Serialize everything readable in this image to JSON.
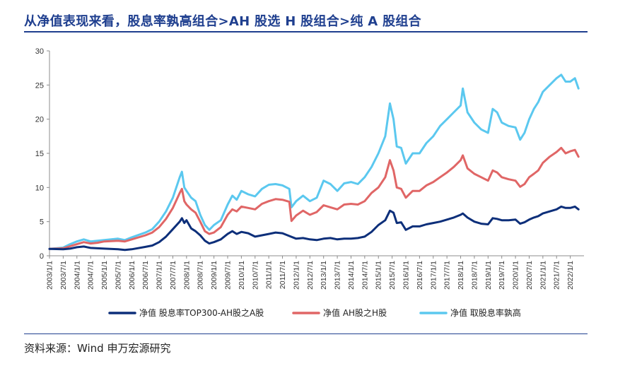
{
  "header": {
    "title": "从净值表现来看，股息率孰高组合>AH 股选 H 股组合>纯 A 股组合"
  },
  "footer": {
    "source": "资料来源：Wind  申万宏源研究"
  },
  "colors": {
    "title": "#1f3f8f",
    "series_1": "#0d2f7a",
    "series_2": "#e06666",
    "series_3": "#5bc8ef"
  },
  "chart_data": {
    "type": "line",
    "title": "",
    "xlabel": "",
    "ylabel": "",
    "ylim": [
      0,
      30
    ],
    "yticks": [
      0,
      5,
      10,
      15,
      20,
      25,
      30
    ],
    "grid": false,
    "legend_position": "bottom",
    "x_range": [
      2003.0,
      2022.5
    ],
    "xtick_labels": [
      "2003/1/1",
      "2003/7/1",
      "2004/1/1",
      "2004/7/1",
      "2005/1/1",
      "2005/7/1",
      "2006/1/1",
      "2006/7/1",
      "2007/1/1",
      "2007/7/1",
      "2008/1/1",
      "2008/7/1",
      "2009/1/1",
      "2009/7/1",
      "2010/1/1",
      "2010/7/1",
      "2011/1/1",
      "2011/7/1",
      "2012/1/1",
      "2012/7/1",
      "2013/1/1",
      "2013/7/1",
      "2014/1/1",
      "2014/7/1",
      "2015/1/1",
      "2015/7/1",
      "2016/1/1",
      "2016/7/1",
      "2017/1/1",
      "2017/7/1",
      "2018/1/1",
      "2018/7/1",
      "2019/1/1",
      "2019/7/1",
      "2020/1/1",
      "2020/7/1",
      "2021/1/1",
      "2021/7/1",
      "2022/1/1"
    ],
    "series": [
      {
        "name": "净值 股息率TOP300-AH股之A股",
        "color": "#0d2f7a",
        "points": [
          [
            2003.0,
            1.0
          ],
          [
            2003.5,
            0.95
          ],
          [
            2003.75,
            1.05
          ],
          [
            2004.0,
            1.25
          ],
          [
            2004.25,
            1.35
          ],
          [
            2004.5,
            1.15
          ],
          [
            2004.75,
            1.1
          ],
          [
            2005.0,
            1.05
          ],
          [
            2005.5,
            0.95
          ],
          [
            2005.75,
            0.85
          ],
          [
            2006.0,
            0.95
          ],
          [
            2006.5,
            1.3
          ],
          [
            2006.75,
            1.5
          ],
          [
            2007.0,
            2.0
          ],
          [
            2007.25,
            2.8
          ],
          [
            2007.5,
            3.9
          ],
          [
            2007.75,
            5.0
          ],
          [
            2007.83,
            5.5
          ],
          [
            2007.92,
            4.8
          ],
          [
            2008.0,
            5.2
          ],
          [
            2008.17,
            4.0
          ],
          [
            2008.33,
            3.6
          ],
          [
            2008.5,
            3.0
          ],
          [
            2008.67,
            2.2
          ],
          [
            2008.83,
            1.8
          ],
          [
            2009.0,
            2.0
          ],
          [
            2009.25,
            2.4
          ],
          [
            2009.5,
            3.2
          ],
          [
            2009.67,
            3.6
          ],
          [
            2009.83,
            3.2
          ],
          [
            2010.0,
            3.5
          ],
          [
            2010.25,
            3.3
          ],
          [
            2010.5,
            2.8
          ],
          [
            2010.75,
            3.0
          ],
          [
            2011.0,
            3.2
          ],
          [
            2011.25,
            3.4
          ],
          [
            2011.5,
            3.3
          ],
          [
            2011.75,
            2.9
          ],
          [
            2012.0,
            2.5
          ],
          [
            2012.25,
            2.6
          ],
          [
            2012.5,
            2.4
          ],
          [
            2012.75,
            2.3
          ],
          [
            2013.0,
            2.5
          ],
          [
            2013.25,
            2.6
          ],
          [
            2013.5,
            2.4
          ],
          [
            2013.75,
            2.5
          ],
          [
            2014.0,
            2.5
          ],
          [
            2014.25,
            2.6
          ],
          [
            2014.5,
            2.8
          ],
          [
            2014.75,
            3.5
          ],
          [
            2015.0,
            4.5
          ],
          [
            2015.25,
            5.2
          ],
          [
            2015.42,
            6.6
          ],
          [
            2015.55,
            6.3
          ],
          [
            2015.67,
            4.8
          ],
          [
            2015.83,
            4.9
          ],
          [
            2016.0,
            3.8
          ],
          [
            2016.25,
            4.3
          ],
          [
            2016.5,
            4.3
          ],
          [
            2016.75,
            4.6
          ],
          [
            2017.0,
            4.8
          ],
          [
            2017.25,
            5.0
          ],
          [
            2017.5,
            5.3
          ],
          [
            2017.75,
            5.6
          ],
          [
            2018.0,
            6.0
          ],
          [
            2018.08,
            6.2
          ],
          [
            2018.25,
            5.6
          ],
          [
            2018.5,
            5.0
          ],
          [
            2018.75,
            4.7
          ],
          [
            2019.0,
            4.6
          ],
          [
            2019.17,
            5.5
          ],
          [
            2019.33,
            5.4
          ],
          [
            2019.5,
            5.2
          ],
          [
            2019.75,
            5.2
          ],
          [
            2020.0,
            5.3
          ],
          [
            2020.17,
            4.7
          ],
          [
            2020.33,
            4.9
          ],
          [
            2020.5,
            5.3
          ],
          [
            2020.67,
            5.6
          ],
          [
            2020.83,
            5.8
          ],
          [
            2021.0,
            6.2
          ],
          [
            2021.25,
            6.5
          ],
          [
            2021.5,
            6.8
          ],
          [
            2021.67,
            7.2
          ],
          [
            2021.83,
            7.0
          ],
          [
            2022.0,
            7.0
          ],
          [
            2022.17,
            7.2
          ],
          [
            2022.3,
            6.8
          ]
        ]
      },
      {
        "name": "净值 AH股之H股",
        "color": "#e06666",
        "points": [
          [
            2003.0,
            1.0
          ],
          [
            2003.5,
            1.1
          ],
          [
            2003.75,
            1.4
          ],
          [
            2004.0,
            1.7
          ],
          [
            2004.25,
            2.0
          ],
          [
            2004.5,
            1.8
          ],
          [
            2004.75,
            1.9
          ],
          [
            2005.0,
            2.1
          ],
          [
            2005.5,
            2.2
          ],
          [
            2005.75,
            2.1
          ],
          [
            2006.0,
            2.4
          ],
          [
            2006.5,
            3.0
          ],
          [
            2006.75,
            3.4
          ],
          [
            2007.0,
            4.2
          ],
          [
            2007.25,
            5.4
          ],
          [
            2007.5,
            7.0
          ],
          [
            2007.75,
            9.2
          ],
          [
            2007.83,
            9.8
          ],
          [
            2007.92,
            8.0
          ],
          [
            2008.0,
            7.5
          ],
          [
            2008.17,
            6.8
          ],
          [
            2008.33,
            6.3
          ],
          [
            2008.5,
            5.0
          ],
          [
            2008.67,
            3.6
          ],
          [
            2008.83,
            3.2
          ],
          [
            2009.0,
            3.4
          ],
          [
            2009.25,
            4.2
          ],
          [
            2009.5,
            6.0
          ],
          [
            2009.67,
            6.8
          ],
          [
            2009.83,
            6.5
          ],
          [
            2010.0,
            7.2
          ],
          [
            2010.25,
            7.0
          ],
          [
            2010.5,
            6.8
          ],
          [
            2010.75,
            7.6
          ],
          [
            2011.0,
            8.0
          ],
          [
            2011.25,
            8.3
          ],
          [
            2011.5,
            8.2
          ],
          [
            2011.75,
            7.9
          ],
          [
            2011.83,
            5.1
          ],
          [
            2012.0,
            5.9
          ],
          [
            2012.25,
            6.6
          ],
          [
            2012.5,
            6.0
          ],
          [
            2012.75,
            6.4
          ],
          [
            2013.0,
            7.4
          ],
          [
            2013.25,
            7.1
          ],
          [
            2013.5,
            6.8
          ],
          [
            2013.75,
            7.5
          ],
          [
            2014.0,
            7.6
          ],
          [
            2014.25,
            7.5
          ],
          [
            2014.5,
            8.0
          ],
          [
            2014.75,
            9.2
          ],
          [
            2015.0,
            10.0
          ],
          [
            2015.25,
            11.5
          ],
          [
            2015.42,
            14.0
          ],
          [
            2015.55,
            12.5
          ],
          [
            2015.67,
            10.0
          ],
          [
            2015.83,
            9.8
          ],
          [
            2016.0,
            8.5
          ],
          [
            2016.25,
            9.5
          ],
          [
            2016.5,
            9.5
          ],
          [
            2016.75,
            10.3
          ],
          [
            2017.0,
            10.8
          ],
          [
            2017.25,
            11.5
          ],
          [
            2017.5,
            12.2
          ],
          [
            2017.75,
            13.0
          ],
          [
            2018.0,
            14.0
          ],
          [
            2018.08,
            14.7
          ],
          [
            2018.25,
            12.8
          ],
          [
            2018.5,
            12.0
          ],
          [
            2018.75,
            11.5
          ],
          [
            2019.0,
            11.0
          ],
          [
            2019.17,
            12.5
          ],
          [
            2019.33,
            12.2
          ],
          [
            2019.5,
            11.5
          ],
          [
            2019.75,
            11.2
          ],
          [
            2020.0,
            11.0
          ],
          [
            2020.17,
            10.1
          ],
          [
            2020.33,
            10.5
          ],
          [
            2020.5,
            11.5
          ],
          [
            2020.67,
            12.0
          ],
          [
            2020.83,
            12.5
          ],
          [
            2021.0,
            13.6
          ],
          [
            2021.25,
            14.5
          ],
          [
            2021.5,
            15.2
          ],
          [
            2021.67,
            15.8
          ],
          [
            2021.83,
            15.0
          ],
          [
            2022.0,
            15.3
          ],
          [
            2022.17,
            15.5
          ],
          [
            2022.3,
            14.5
          ]
        ]
      },
      {
        "name": "净值 取股息率孰高",
        "color": "#5bc8ef",
        "points": [
          [
            2003.0,
            1.0
          ],
          [
            2003.5,
            1.2
          ],
          [
            2003.75,
            1.7
          ],
          [
            2004.0,
            2.1
          ],
          [
            2004.25,
            2.4
          ],
          [
            2004.5,
            2.1
          ],
          [
            2004.75,
            2.2
          ],
          [
            2005.0,
            2.3
          ],
          [
            2005.5,
            2.5
          ],
          [
            2005.75,
            2.3
          ],
          [
            2006.0,
            2.7
          ],
          [
            2006.5,
            3.4
          ],
          [
            2006.75,
            3.9
          ],
          [
            2007.0,
            5.0
          ],
          [
            2007.25,
            6.5
          ],
          [
            2007.5,
            8.5
          ],
          [
            2007.75,
            11.5
          ],
          [
            2007.83,
            12.3
          ],
          [
            2007.92,
            10.0
          ],
          [
            2008.0,
            9.5
          ],
          [
            2008.17,
            8.5
          ],
          [
            2008.33,
            8.0
          ],
          [
            2008.5,
            6.0
          ],
          [
            2008.67,
            4.5
          ],
          [
            2008.83,
            3.8
          ],
          [
            2009.0,
            4.5
          ],
          [
            2009.25,
            5.2
          ],
          [
            2009.5,
            7.5
          ],
          [
            2009.67,
            8.8
          ],
          [
            2009.83,
            8.2
          ],
          [
            2010.0,
            9.5
          ],
          [
            2010.25,
            9.0
          ],
          [
            2010.5,
            8.7
          ],
          [
            2010.75,
            9.8
          ],
          [
            2011.0,
            10.4
          ],
          [
            2011.25,
            10.5
          ],
          [
            2011.5,
            10.3
          ],
          [
            2011.75,
            9.8
          ],
          [
            2011.83,
            7.1
          ],
          [
            2012.0,
            8.0
          ],
          [
            2012.25,
            8.8
          ],
          [
            2012.5,
            8.0
          ],
          [
            2012.75,
            8.5
          ],
          [
            2013.0,
            11.0
          ],
          [
            2013.25,
            10.5
          ],
          [
            2013.5,
            9.5
          ],
          [
            2013.75,
            10.6
          ],
          [
            2014.0,
            10.8
          ],
          [
            2014.25,
            10.5
          ],
          [
            2014.5,
            11.5
          ],
          [
            2014.75,
            13.0
          ],
          [
            2015.0,
            15.0
          ],
          [
            2015.25,
            17.5
          ],
          [
            2015.42,
            22.3
          ],
          [
            2015.55,
            20.0
          ],
          [
            2015.67,
            16.0
          ],
          [
            2015.83,
            15.8
          ],
          [
            2016.0,
            13.5
          ],
          [
            2016.25,
            15.0
          ],
          [
            2016.5,
            15.0
          ],
          [
            2016.75,
            16.5
          ],
          [
            2017.0,
            17.5
          ],
          [
            2017.25,
            19.0
          ],
          [
            2017.5,
            20.0
          ],
          [
            2017.75,
            21.0
          ],
          [
            2018.0,
            22.0
          ],
          [
            2018.08,
            24.5
          ],
          [
            2018.25,
            21.0
          ],
          [
            2018.5,
            19.5
          ],
          [
            2018.75,
            18.5
          ],
          [
            2019.0,
            18.0
          ],
          [
            2019.17,
            21.5
          ],
          [
            2019.33,
            21.0
          ],
          [
            2019.5,
            19.5
          ],
          [
            2019.75,
            19.0
          ],
          [
            2020.0,
            18.8
          ],
          [
            2020.17,
            17.0
          ],
          [
            2020.33,
            18.0
          ],
          [
            2020.5,
            20.0
          ],
          [
            2020.67,
            21.5
          ],
          [
            2020.83,
            22.5
          ],
          [
            2021.0,
            24.0
          ],
          [
            2021.25,
            25.0
          ],
          [
            2021.5,
            26.0
          ],
          [
            2021.67,
            26.5
          ],
          [
            2021.83,
            25.5
          ],
          [
            2022.0,
            25.5
          ],
          [
            2022.17,
            26.0
          ],
          [
            2022.3,
            24.5
          ]
        ]
      }
    ]
  }
}
